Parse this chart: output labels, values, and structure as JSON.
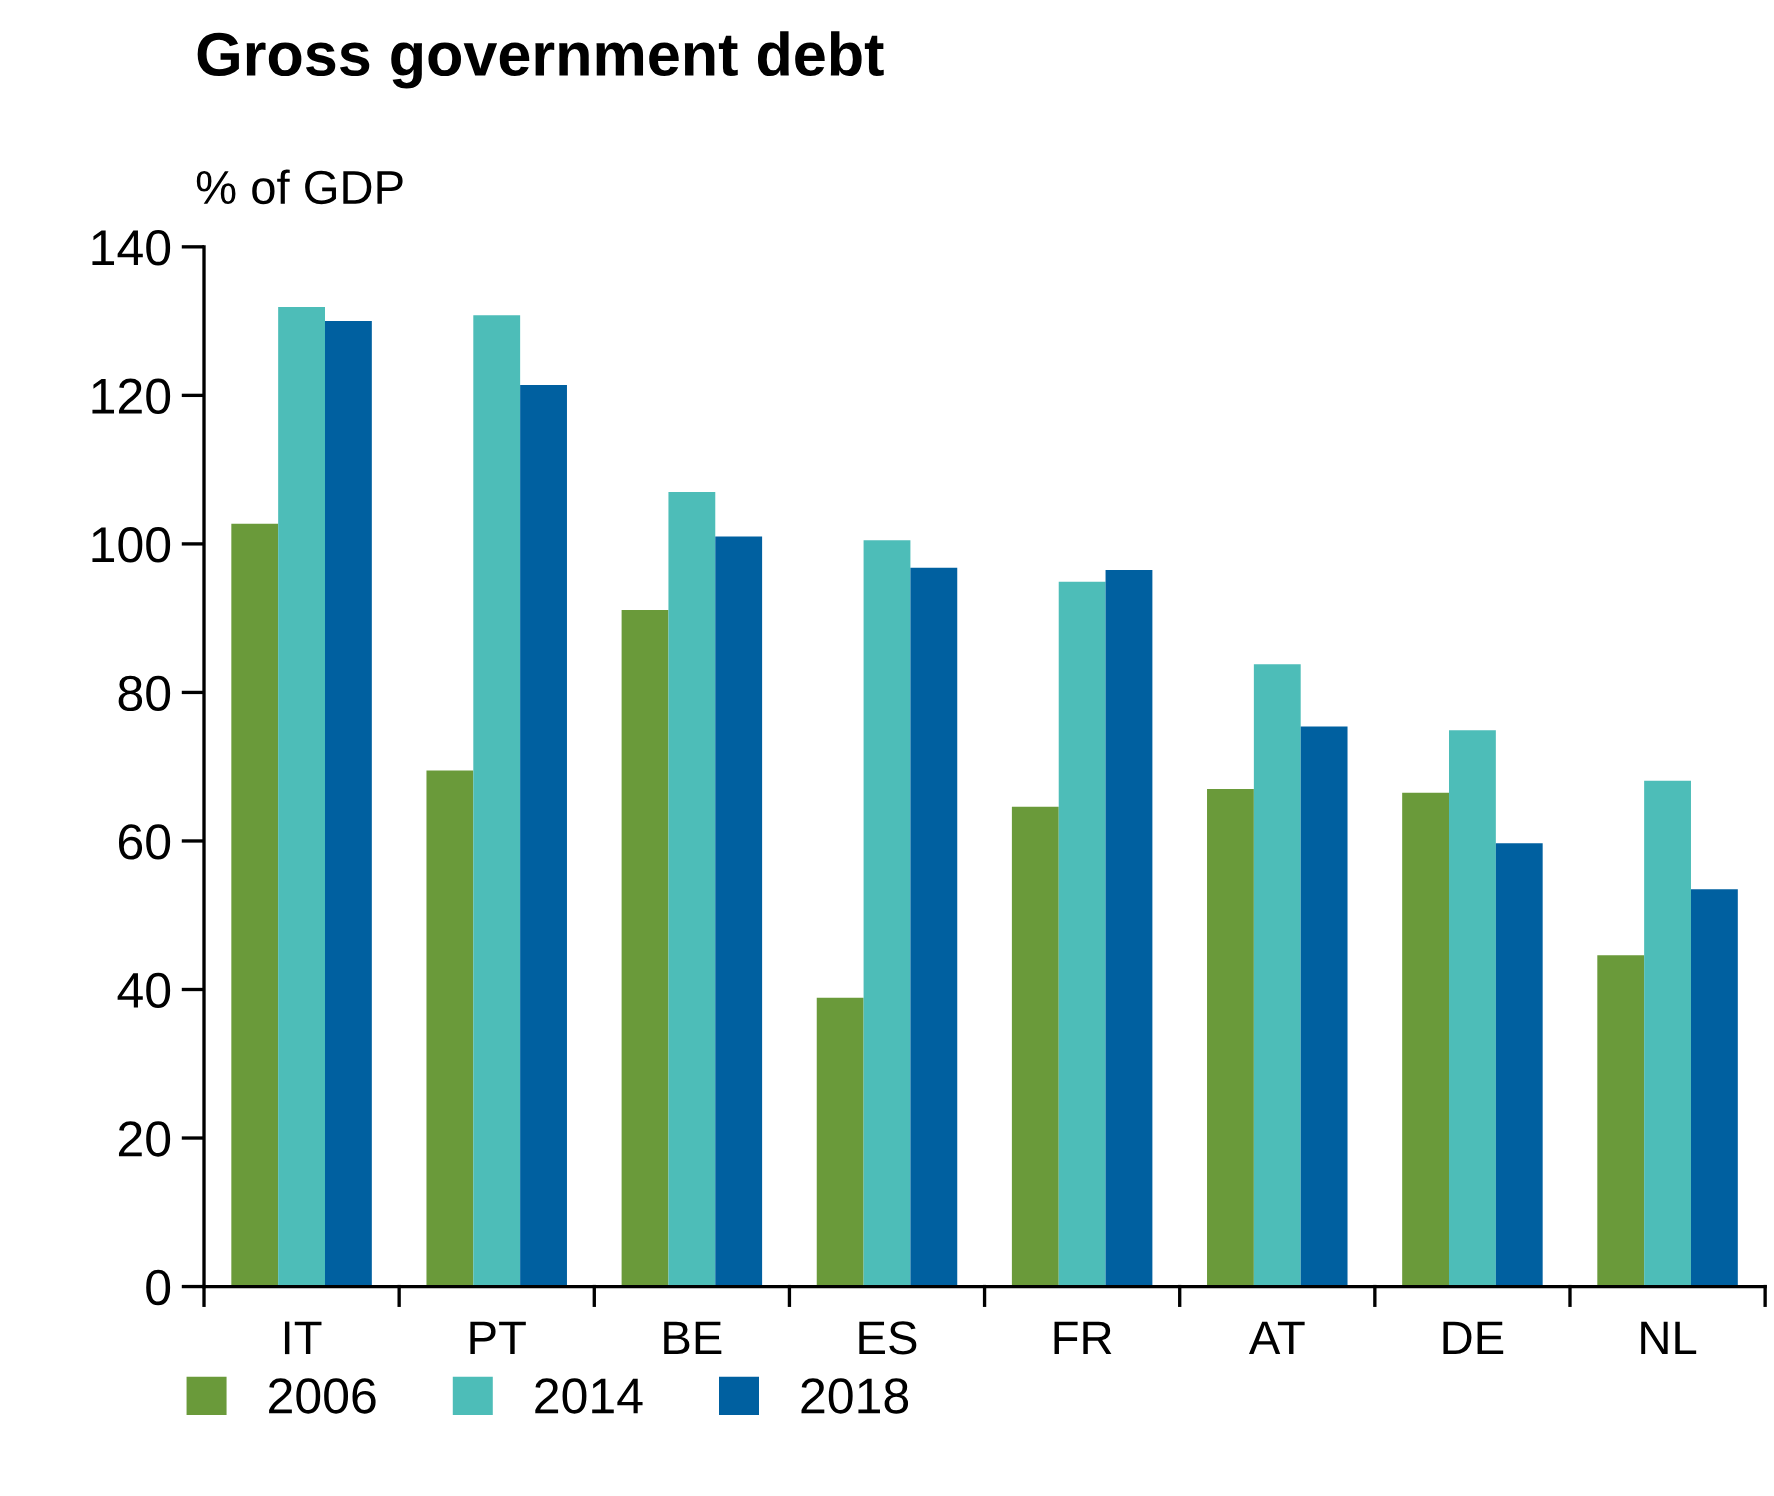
{
  "chart_data": {
    "type": "bar",
    "title": "Gross government debt",
    "ylabel": "% of GDP",
    "categories": [
      "IT",
      "PT",
      "BE",
      "ES",
      "FR",
      "AT",
      "DE",
      "NL"
    ],
    "series": [
      {
        "name": "2006",
        "color": "#6a9a3a",
        "values": [
          102.7,
          69.5,
          91.1,
          38.9,
          64.6,
          67.0,
          66.5,
          44.6
        ]
      },
      {
        "name": "2014",
        "color": "#4dbdb8",
        "values": [
          131.9,
          130.8,
          107.0,
          100.5,
          94.9,
          83.8,
          74.9,
          68.1
        ]
      },
      {
        "name": "2018",
        "color": "#0060a0",
        "values": [
          130.0,
          121.4,
          101.0,
          96.8,
          96.5,
          75.4,
          59.7,
          53.5
        ]
      }
    ],
    "ylim": [
      0,
      140
    ],
    "yticks": [
      0,
      20,
      40,
      60,
      80,
      100,
      120,
      140
    ],
    "grid": false,
    "legend": "bottom"
  }
}
